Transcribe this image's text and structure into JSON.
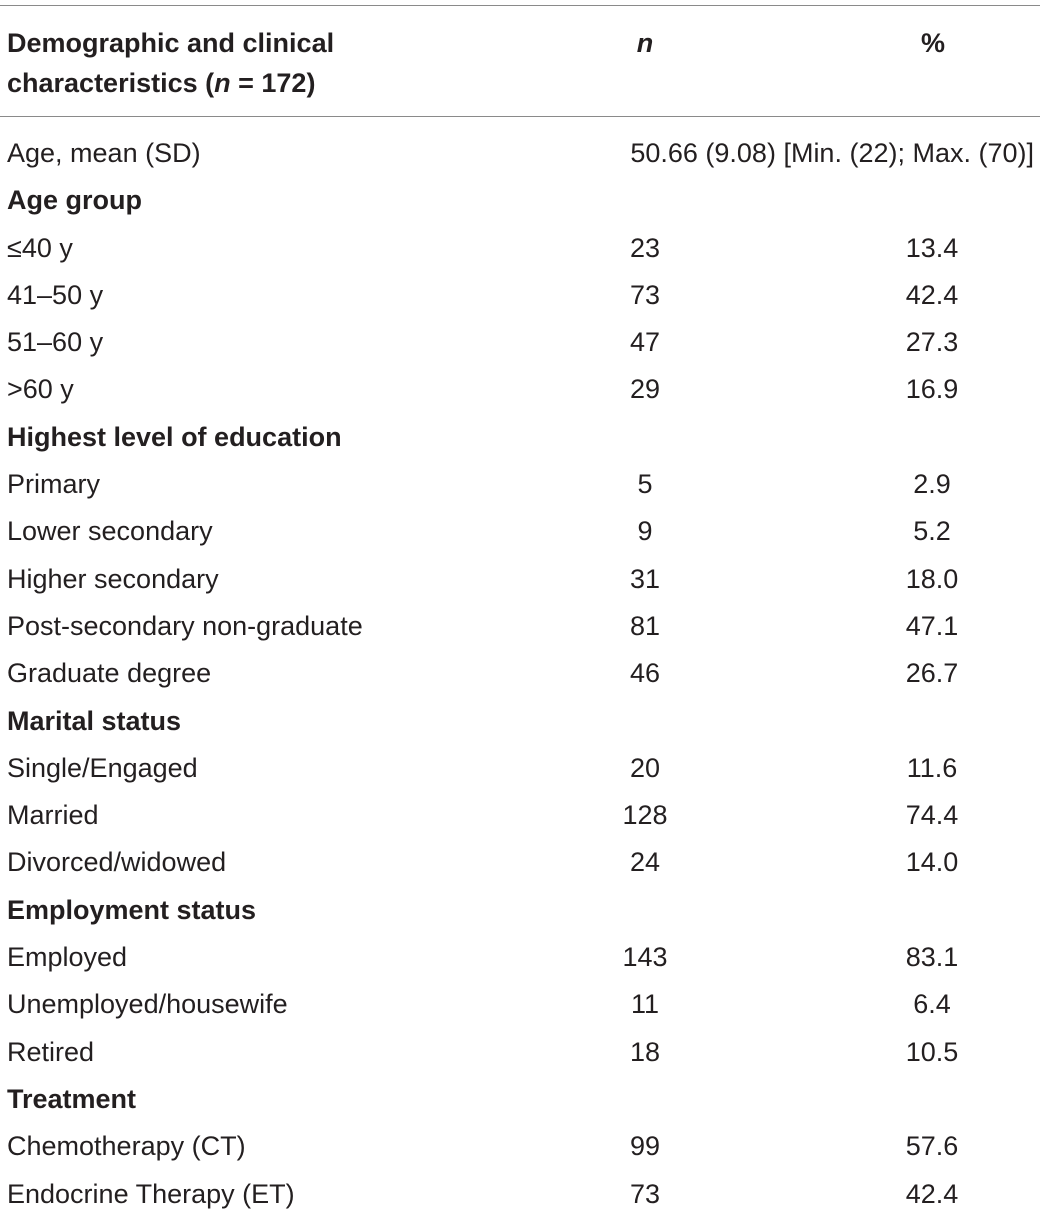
{
  "header": {
    "label_line1": "Demographic and clinical",
    "label_line2_prefix": "characteristics (",
    "label_line2_n": "n",
    "label_line2_suffix": " = 172)",
    "n": "n",
    "pct": "%"
  },
  "age_row": {
    "label": "Age, mean (SD)",
    "value": "50.66 (9.08) [Min. (22); Max. (70)]"
  },
  "groups": [
    {
      "title": "Age group",
      "rows": [
        {
          "label": "≤40 y",
          "n": "23",
          "pct": "13.4"
        },
        {
          "label": "41–50 y",
          "n": "73",
          "pct": "42.4"
        },
        {
          "label": "51–60 y",
          "n": "47",
          "pct": "27.3"
        },
        {
          "label": ">60 y",
          "n": "29",
          "pct": "16.9"
        }
      ]
    },
    {
      "title": "Highest level of education",
      "rows": [
        {
          "label": "Primary",
          "n": "5",
          "pct": "2.9"
        },
        {
          "label": "Lower secondary",
          "n": "9",
          "pct": "5.2"
        },
        {
          "label": "Higher secondary",
          "n": "31",
          "pct": "18.0"
        },
        {
          "label": "Post-secondary non-graduate",
          "n": "81",
          "pct": "47.1"
        },
        {
          "label": "Graduate degree",
          "n": "46",
          "pct": "26.7"
        }
      ]
    },
    {
      "title": "Marital status",
      "rows": [
        {
          "label": "Single/Engaged",
          "n": "20",
          "pct": "11.6"
        },
        {
          "label": "Married",
          "n": "128",
          "pct": "74.4"
        },
        {
          "label": "Divorced/widowed",
          "n": "24",
          "pct": "14.0"
        }
      ]
    },
    {
      "title": "Employment status",
      "rows": [
        {
          "label": "Employed",
          "n": "143",
          "pct": "83.1"
        },
        {
          "label": "Unemployed/housewife",
          "n": "11",
          "pct": "6.4"
        },
        {
          "label": "Retired",
          "n": "18",
          "pct": "10.5"
        }
      ]
    },
    {
      "title": "Treatment",
      "rows": [
        {
          "label": "Chemotherapy (CT)",
          "n": "99",
          "pct": "57.6"
        },
        {
          "label": "Endocrine Therapy (ET)",
          "n": "73",
          "pct": "42.4"
        }
      ]
    }
  ]
}
